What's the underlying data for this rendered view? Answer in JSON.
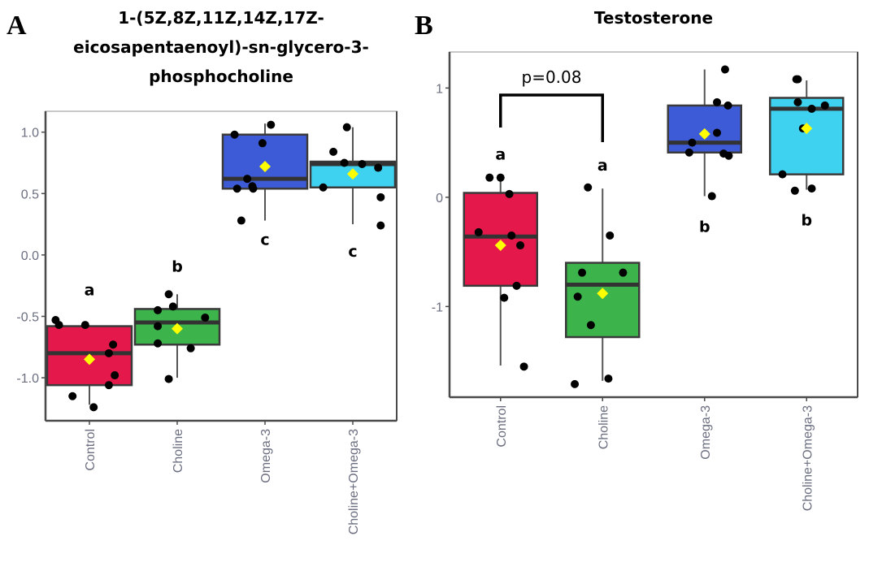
{
  "chart_data": [
    {
      "type": "box",
      "panel_label": "A",
      "title": [
        "1-(5Z,8Z,11Z,14Z,17Z-",
        "eicosapentaenoyl)-sn-glycero-3-",
        "phosphocholine"
      ],
      "xlabel": "",
      "ylabel": "",
      "ylim": [
        -1.35,
        1.17
      ],
      "yticks": [
        1.0,
        0.5,
        0.0,
        -0.5,
        -1.0
      ],
      "ytick_labels": [
        "1.0",
        "0.5",
        "0.0",
        "-0.5",
        "-1.0"
      ],
      "grid": false,
      "categories": [
        "Control",
        "Choline",
        "Omega-3",
        "Choline+Omega-3"
      ],
      "colors": [
        "#e5184c",
        "#3cb44b",
        "#3d5bd6",
        "#3fd2f0"
      ],
      "boxes": [
        {
          "q1": -1.06,
          "median": -0.8,
          "q3": -0.58,
          "whisker_low": -1.22,
          "whisker_high": -0.58,
          "mean": -0.85
        },
        {
          "q1": -0.73,
          "median": -0.55,
          "q3": -0.44,
          "whisker_low": -1.0,
          "whisker_high": -0.32,
          "mean": -0.6
        },
        {
          "q1": 0.54,
          "median": 0.62,
          "q3": 0.98,
          "whisker_low": 0.28,
          "whisker_high": 1.07,
          "mean": 0.72
        },
        {
          "q1": 0.55,
          "median": 0.74,
          "q3": 0.76,
          "whisker_low": 0.25,
          "whisker_high": 1.04,
          "mean": 0.66
        }
      ],
      "points": [
        [
          [
            -0.4,
            -0.53
          ],
          [
            -0.36,
            -0.57
          ],
          [
            -0.05,
            -0.57
          ],
          [
            0.28,
            -0.73
          ],
          [
            0.23,
            -0.8
          ],
          [
            0.3,
            -0.98
          ],
          [
            0.23,
            -1.06
          ],
          [
            -0.2,
            -1.15
          ],
          [
            0.05,
            -1.24
          ]
        ],
        [
          [
            -0.1,
            -0.32
          ],
          [
            -0.23,
            -0.45
          ],
          [
            -0.05,
            -0.42
          ],
          [
            0.33,
            -0.51
          ],
          [
            -0.23,
            -0.58
          ],
          [
            -0.23,
            -0.72
          ],
          [
            0.16,
            -0.76
          ],
          [
            -0.1,
            -1.01
          ]
        ],
        [
          [
            -0.36,
            0.98
          ],
          [
            0.07,
            1.06
          ],
          [
            -0.03,
            0.91
          ],
          [
            -0.21,
            0.62
          ],
          [
            -0.33,
            0.54
          ],
          [
            -0.15,
            0.56
          ],
          [
            -0.14,
            0.54
          ],
          [
            -0.28,
            0.28
          ]
        ],
        [
          [
            -0.07,
            1.04
          ],
          [
            -0.23,
            0.84
          ],
          [
            -0.1,
            0.75
          ],
          [
            0.11,
            0.74
          ],
          [
            0.3,
            0.71
          ],
          [
            -0.35,
            0.55
          ],
          [
            0.33,
            0.47
          ],
          [
            0.33,
            0.24
          ]
        ]
      ],
      "significance_letters": [
        "a",
        "b",
        "c",
        "c"
      ],
      "mean_marker": "yellow diamond"
    },
    {
      "type": "box",
      "panel_label": "B",
      "title": [
        "Testosterone"
      ],
      "xlabel": "",
      "ylabel": "",
      "ylim": [
        -1.83,
        1.33
      ],
      "yticks": [
        1,
        0,
        -1
      ],
      "ytick_labels": [
        "1",
        "0",
        "-1"
      ],
      "grid": false,
      "categories": [
        "Control",
        "Choline",
        "Omega-3",
        "Choline+Omega-3"
      ],
      "colors": [
        "#e5184c",
        "#3cb44b",
        "#3d5bd6",
        "#3fd2f0"
      ],
      "boxes": [
        {
          "q1": -0.81,
          "median": -0.36,
          "q3": 0.04,
          "whisker_low": -1.54,
          "whisker_high": 0.18,
          "mean": -0.44
        },
        {
          "q1": -1.28,
          "median": -0.8,
          "q3": -0.6,
          "whisker_low": -1.68,
          "whisker_high": 0.08,
          "mean": -0.88
        },
        {
          "q1": 0.41,
          "median": 0.5,
          "q3": 0.84,
          "whisker_low": 0.01,
          "whisker_high": 1.17,
          "mean": 0.58
        },
        {
          "q1": 0.21,
          "median": 0.81,
          "q3": 0.91,
          "whisker_low": 0.07,
          "whisker_high": 1.07,
          "mean": 0.63
        }
      ],
      "points": [
        [
          [
            -0.15,
            0.18
          ],
          [
            0.0,
            0.18
          ],
          [
            0.12,
            0.03
          ],
          [
            -0.3,
            -0.32
          ],
          [
            0.15,
            -0.35
          ],
          [
            0.27,
            -0.44
          ],
          [
            0.22,
            -0.81
          ],
          [
            0.05,
            -0.92
          ],
          [
            0.32,
            -1.55
          ]
        ],
        [
          [
            -0.2,
            0.09
          ],
          [
            0.1,
            -0.35
          ],
          [
            -0.28,
            -0.69
          ],
          [
            0.28,
            -0.69
          ],
          [
            -0.34,
            -0.91
          ],
          [
            -0.16,
            -1.17
          ],
          [
            -0.38,
            -1.71
          ],
          [
            0.08,
            -1.66
          ]
        ],
        [
          [
            0.28,
            1.17
          ],
          [
            0.17,
            0.87
          ],
          [
            0.32,
            0.84
          ],
          [
            0.17,
            0.59
          ],
          [
            -0.17,
            0.5
          ],
          [
            -0.21,
            0.41
          ],
          [
            0.26,
            0.4
          ],
          [
            0.33,
            0.38
          ],
          [
            0.1,
            0.01
          ]
        ],
        [
          [
            -0.14,
            1.08
          ],
          [
            -0.12,
            1.08
          ],
          [
            -0.12,
            0.87
          ],
          [
            0.07,
            0.81
          ],
          [
            0.25,
            0.84
          ],
          [
            -0.05,
            0.63
          ],
          [
            -0.33,
            0.21
          ],
          [
            -0.16,
            0.06
          ],
          [
            0.07,
            0.08
          ]
        ]
      ],
      "significance_letters": [
        "a",
        "a",
        "b",
        "b"
      ],
      "comparison": {
        "groups": [
          "Control",
          "Choline"
        ],
        "label": "p=0.08"
      },
      "mean_marker": "yellow diamond"
    }
  ]
}
